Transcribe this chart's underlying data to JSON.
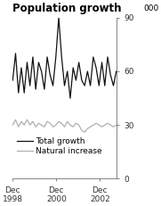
{
  "title": "Population growth",
  "ylabel_above": "000",
  "ylim": [
    0,
    90
  ],
  "yticks": [
    0,
    30,
    60,
    90
  ],
  "xtick_positions": [
    0,
    8,
    16
  ],
  "xtick_labels": [
    "Dec\n1998",
    "Dec\n2000",
    "Dec\n2002"
  ],
  "xlim": [
    0,
    19
  ],
  "legend_labels": [
    "Total growth",
    "Natural increase"
  ],
  "total_growth": [
    55,
    70,
    48,
    62,
    48,
    65,
    52,
    68,
    50,
    65,
    60,
    50,
    68,
    58,
    52,
    68,
    90,
    68,
    52,
    60,
    45,
    62,
    55,
    65,
    55,
    52,
    60,
    52,
    68,
    62,
    52,
    65,
    52,
    68,
    58,
    52,
    60
  ],
  "natural_increase": [
    30,
    33,
    29,
    32,
    30,
    33,
    30,
    32,
    29,
    31,
    30,
    29,
    32,
    31,
    29,
    30,
    32,
    31,
    29,
    32,
    30,
    29,
    31,
    30,
    27,
    26,
    28,
    29,
    30,
    31,
    30,
    29,
    30,
    31,
    30,
    29,
    30
  ],
  "total_color": "#111111",
  "natural_color": "#b0b0b0",
  "background_color": "#ffffff",
  "title_fontsize": 8.5,
  "tick_fontsize": 6.5,
  "legend_fontsize": 6.5,
  "linewidth_total": 0.9,
  "linewidth_natural": 0.9
}
